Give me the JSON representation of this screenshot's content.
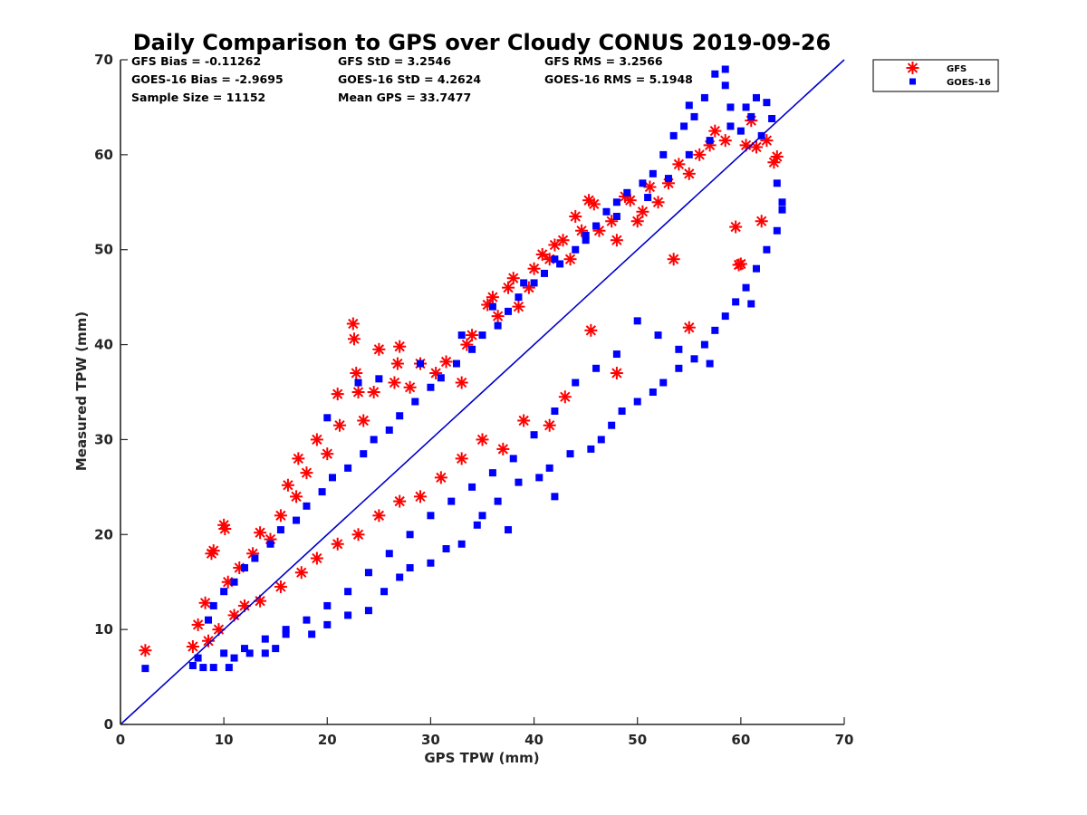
{
  "chart_data": {
    "type": "scatter",
    "title": "Daily Comparison to GPS over Cloudy CONUS 2019-09-26",
    "xlabel": "GPS TPW (mm)",
    "ylabel": "Measured TPW (mm)",
    "xlim": [
      0,
      70
    ],
    "ylim": [
      0,
      70
    ],
    "xticks": [
      0,
      10,
      20,
      30,
      40,
      50,
      60,
      70
    ],
    "yticks": [
      0,
      10,
      20,
      30,
      40,
      50,
      60,
      70
    ],
    "grid": false,
    "legend_position": "outside-top-right",
    "reference_line": {
      "label": "",
      "from": [
        0,
        0
      ],
      "to": [
        70,
        70
      ],
      "color": "#0000cc"
    },
    "stats": [
      {
        "text": "GFS Bias = -0.11262"
      },
      {
        "text": "GOES-16 Bias = -2.9695"
      },
      {
        "text": "Sample Size = 11152"
      },
      {
        "text": "GFS StD = 3.2546"
      },
      {
        "text": "GOES-16 StD = 4.2624"
      },
      {
        "text": "Mean GPS = 33.7477"
      },
      {
        "text": "GFS RMS = 3.2566"
      },
      {
        "text": "GOES-16 RMS = 5.1948"
      }
    ],
    "series": [
      {
        "name": "GFS",
        "marker": "asterisk",
        "color": "#ff0000",
        "points": [
          [
            2.4,
            7.8
          ],
          [
            7.0,
            8.2
          ],
          [
            7.5,
            10.5
          ],
          [
            8.2,
            12.8
          ],
          [
            8.8,
            18.0
          ],
          [
            9.0,
            18.3
          ],
          [
            10.0,
            21.0
          ],
          [
            10.1,
            20.6
          ],
          [
            10.4,
            15.0
          ],
          [
            11.5,
            16.5
          ],
          [
            12.8,
            18.0
          ],
          [
            13.5,
            20.2
          ],
          [
            14.5,
            19.5
          ],
          [
            15.5,
            22.0
          ],
          [
            16.2,
            25.2
          ],
          [
            17.0,
            24.0
          ],
          [
            17.2,
            28.0
          ],
          [
            18.0,
            26.5
          ],
          [
            19.0,
            30.0
          ],
          [
            20.0,
            28.5
          ],
          [
            21.0,
            34.8
          ],
          [
            21.2,
            31.5
          ],
          [
            22.5,
            42.2
          ],
          [
            22.6,
            40.6
          ],
          [
            22.8,
            37.0
          ],
          [
            23.0,
            35.0
          ],
          [
            23.5,
            32.0
          ],
          [
            24.5,
            35.0
          ],
          [
            25.0,
            39.5
          ],
          [
            26.5,
            36.0
          ],
          [
            26.8,
            38.0
          ],
          [
            27.0,
            39.8
          ],
          [
            28.0,
            35.5
          ],
          [
            29.0,
            38.0
          ],
          [
            30.5,
            37.0
          ],
          [
            31.5,
            38.2
          ],
          [
            33.0,
            36.0
          ],
          [
            33.5,
            40.0
          ],
          [
            34.0,
            41.0
          ],
          [
            35.5,
            44.2
          ],
          [
            36.0,
            45.0
          ],
          [
            36.5,
            43.0
          ],
          [
            37.5,
            46.0
          ],
          [
            38.0,
            47.0
          ],
          [
            38.5,
            44.0
          ],
          [
            39.5,
            46.0
          ],
          [
            40.0,
            48.0
          ],
          [
            40.8,
            49.5
          ],
          [
            41.5,
            49.0
          ],
          [
            42.0,
            50.5
          ],
          [
            42.8,
            51.0
          ],
          [
            43.5,
            49.0
          ],
          [
            44.0,
            53.5
          ],
          [
            44.6,
            52.0
          ],
          [
            45.3,
            55.2
          ],
          [
            45.8,
            54.8
          ],
          [
            46.3,
            52.0
          ],
          [
            47.5,
            53.0
          ],
          [
            48.0,
            51.0
          ],
          [
            48.8,
            55.6
          ],
          [
            49.3,
            55.2
          ],
          [
            50.0,
            53.0
          ],
          [
            50.5,
            54.0
          ],
          [
            51.2,
            56.6
          ],
          [
            52.0,
            55.0
          ],
          [
            53.0,
            57.0
          ],
          [
            54.0,
            59.0
          ],
          [
            55.0,
            58.0
          ],
          [
            56.0,
            60.0
          ],
          [
            57.0,
            61.0
          ],
          [
            57.5,
            62.5
          ],
          [
            58.5,
            61.5
          ],
          [
            59.5,
            52.4
          ],
          [
            59.8,
            48.4
          ],
          [
            60.0,
            48.5
          ],
          [
            60.5,
            61.0
          ],
          [
            61.0,
            63.6
          ],
          [
            61.5,
            60.8
          ],
          [
            62.0,
            53.0
          ],
          [
            62.5,
            61.5
          ],
          [
            63.2,
            59.2
          ],
          [
            63.5,
            59.8
          ],
          [
            55.0,
            41.8
          ],
          [
            53.5,
            49.0
          ],
          [
            48.0,
            37.0
          ],
          [
            45.5,
            41.5
          ],
          [
            43.0,
            34.5
          ],
          [
            41.5,
            31.5
          ],
          [
            39.0,
            32.0
          ],
          [
            37.0,
            29.0
          ],
          [
            35.0,
            30.0
          ],
          [
            33.0,
            28.0
          ],
          [
            31.0,
            26.0
          ],
          [
            29.0,
            24.0
          ],
          [
            27.0,
            23.5
          ],
          [
            25.0,
            22.0
          ],
          [
            23.0,
            20.0
          ],
          [
            21.0,
            19.0
          ],
          [
            19.0,
            17.5
          ],
          [
            17.5,
            16.0
          ],
          [
            15.5,
            14.5
          ],
          [
            13.5,
            13.0
          ],
          [
            12.0,
            12.5
          ],
          [
            11.0,
            11.5
          ],
          [
            9.5,
            10.0
          ],
          [
            8.5,
            8.8
          ]
        ]
      },
      {
        "name": "GOES-16",
        "marker": "square",
        "color": "#0000ff",
        "points": [
          [
            2.4,
            5.9
          ],
          [
            7.0,
            6.2
          ],
          [
            7.5,
            7.0
          ],
          [
            8.0,
            6.0
          ],
          [
            9.0,
            6.0
          ],
          [
            10.5,
            6.0
          ],
          [
            11.0,
            7.0
          ],
          [
            12.5,
            7.5
          ],
          [
            14.0,
            7.5
          ],
          [
            15.0,
            8.0
          ],
          [
            16.0,
            9.5
          ],
          [
            18.5,
            9.5
          ],
          [
            20.0,
            10.5
          ],
          [
            22.0,
            11.5
          ],
          [
            24.0,
            12.0
          ],
          [
            25.5,
            14.0
          ],
          [
            27.0,
            15.5
          ],
          [
            28.0,
            16.5
          ],
          [
            30.0,
            17.0
          ],
          [
            31.5,
            18.5
          ],
          [
            33.0,
            19.0
          ],
          [
            34.5,
            21.0
          ],
          [
            35.0,
            22.0
          ],
          [
            36.5,
            23.5
          ],
          [
            37.5,
            20.5
          ],
          [
            38.5,
            25.5
          ],
          [
            40.5,
            26.0
          ],
          [
            41.5,
            27.0
          ],
          [
            42.0,
            24.0
          ],
          [
            43.5,
            28.5
          ],
          [
            45.5,
            29.0
          ],
          [
            46.5,
            30.0
          ],
          [
            47.5,
            31.5
          ],
          [
            48.5,
            33.0
          ],
          [
            50.0,
            34.0
          ],
          [
            51.5,
            35.0
          ],
          [
            52.5,
            36.0
          ],
          [
            54.0,
            37.5
          ],
          [
            55.5,
            38.5
          ],
          [
            56.5,
            40.0
          ],
          [
            57.5,
            41.5
          ],
          [
            58.5,
            43.0
          ],
          [
            59.5,
            44.5
          ],
          [
            60.5,
            46.0
          ],
          [
            61.0,
            44.3
          ],
          [
            61.5,
            48.0
          ],
          [
            62.5,
            50.0
          ],
          [
            63.5,
            52.0
          ],
          [
            64.0,
            54.2
          ],
          [
            64.0,
            55.0
          ],
          [
            63.5,
            57.0
          ],
          [
            63.0,
            63.8
          ],
          [
            62.0,
            62.0
          ],
          [
            61.0,
            64.0
          ],
          [
            60.0,
            62.5
          ],
          [
            59.0,
            65.0
          ],
          [
            58.5,
            67.3
          ],
          [
            58.5,
            69.0
          ],
          [
            57.5,
            68.5
          ],
          [
            56.5,
            66.0
          ],
          [
            55.5,
            64.0
          ],
          [
            55.0,
            65.2
          ],
          [
            54.5,
            63.0
          ],
          [
            53.5,
            62.0
          ],
          [
            52.5,
            60.0
          ],
          [
            51.5,
            58.0
          ],
          [
            50.5,
            57.0
          ],
          [
            49.0,
            56.0
          ],
          [
            48.0,
            55.0
          ],
          [
            47.0,
            54.0
          ],
          [
            46.0,
            52.5
          ],
          [
            45.0,
            51.0
          ],
          [
            44.0,
            50.0
          ],
          [
            42.5,
            48.5
          ],
          [
            41.0,
            47.5
          ],
          [
            40.0,
            46.5
          ],
          [
            38.5,
            45.0
          ],
          [
            37.5,
            43.5
          ],
          [
            36.5,
            42.0
          ],
          [
            35.0,
            41.0
          ],
          [
            34.0,
            39.5
          ],
          [
            32.5,
            38.0
          ],
          [
            31.0,
            36.5
          ],
          [
            30.0,
            35.5
          ],
          [
            28.5,
            34.0
          ],
          [
            27.0,
            32.5
          ],
          [
            26.0,
            31.0
          ],
          [
            24.5,
            30.0
          ],
          [
            23.5,
            28.5
          ],
          [
            22.0,
            27.0
          ],
          [
            20.5,
            26.0
          ],
          [
            19.5,
            24.5
          ],
          [
            18.0,
            23.0
          ],
          [
            17.0,
            21.5
          ],
          [
            15.5,
            20.5
          ],
          [
            14.5,
            19.0
          ],
          [
            13.0,
            17.5
          ],
          [
            12.0,
            16.5
          ],
          [
            11.0,
            15.0
          ],
          [
            10.0,
            14.0
          ],
          [
            9.0,
            12.5
          ],
          [
            8.5,
            11.0
          ],
          [
            20.0,
            32.3
          ],
          [
            23.0,
            36.0
          ],
          [
            25.0,
            36.4
          ],
          [
            29.0,
            38.0
          ],
          [
            33.0,
            41.0
          ],
          [
            36.0,
            44.0
          ],
          [
            39.0,
            46.5
          ],
          [
            42.0,
            49.0
          ],
          [
            45.0,
            51.5
          ],
          [
            48.0,
            53.5
          ],
          [
            51.0,
            55.5
          ],
          [
            53.0,
            57.5
          ],
          [
            55.0,
            60.0
          ],
          [
            57.0,
            61.5
          ],
          [
            59.0,
            63.0
          ],
          [
            60.5,
            65.0
          ],
          [
            61.5,
            66.0
          ],
          [
            62.5,
            65.5
          ],
          [
            57.0,
            38.0
          ],
          [
            54.0,
            39.5
          ],
          [
            52.0,
            41.0
          ],
          [
            50.0,
            42.5
          ],
          [
            48.0,
            39.0
          ],
          [
            46.0,
            37.5
          ],
          [
            44.0,
            36.0
          ],
          [
            42.0,
            33.0
          ],
          [
            40.0,
            30.5
          ],
          [
            38.0,
            28.0
          ],
          [
            36.0,
            26.5
          ],
          [
            34.0,
            25.0
          ],
          [
            32.0,
            23.5
          ],
          [
            30.0,
            22.0
          ],
          [
            28.0,
            20.0
          ],
          [
            26.0,
            18.0
          ],
          [
            24.0,
            16.0
          ],
          [
            22.0,
            14.0
          ],
          [
            20.0,
            12.5
          ],
          [
            18.0,
            11.0
          ],
          [
            16.0,
            10.0
          ],
          [
            14.0,
            9.0
          ],
          [
            12.0,
            8.0
          ],
          [
            10.0,
            7.5
          ]
        ]
      }
    ]
  }
}
